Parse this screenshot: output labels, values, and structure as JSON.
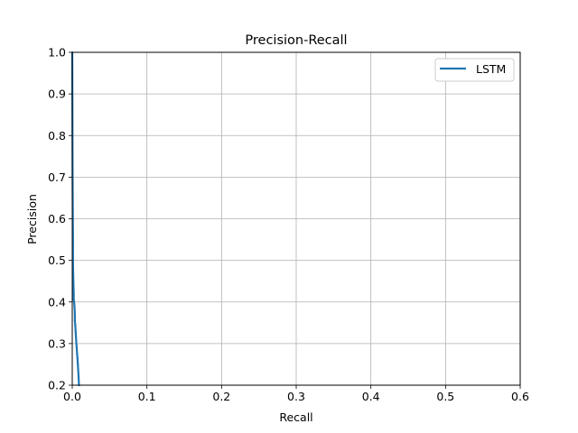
{
  "chart_data": {
    "type": "line",
    "title": "Precision-Recall",
    "xlabel": "Recall",
    "ylabel": "Precision",
    "xlim": [
      0.0,
      0.6
    ],
    "ylim": [
      0.2,
      1.0
    ],
    "xticks": [
      0.0,
      0.1,
      0.2,
      0.3,
      0.4,
      0.5,
      0.6
    ],
    "yticks": [
      0.2,
      0.3,
      0.4,
      0.5,
      0.6,
      0.7,
      0.8,
      0.9,
      1.0
    ],
    "xtick_labels": [
      "0.0",
      "0.1",
      "0.2",
      "0.3",
      "0.4",
      "0.5",
      "0.6"
    ],
    "ytick_labels": [
      "0.2",
      "0.3",
      "0.4",
      "0.5",
      "0.6",
      "0.7",
      "0.8",
      "0.9",
      "1.0"
    ],
    "grid": true,
    "legend_position": "top-right",
    "series": [
      {
        "name": "LSTM",
        "color": "#1f77b4",
        "x": [
          0.0,
          0.0005,
          0.001,
          0.001,
          0.0015,
          0.002,
          0.002,
          0.0025,
          0.003,
          0.0035,
          0.0035,
          0.004,
          0.0045,
          0.005,
          0.0055,
          0.006,
          0.0065,
          0.007,
          0.0075,
          0.008,
          0.0085,
          0.009
        ],
        "y": [
          1.0,
          0.7,
          0.54,
          0.49,
          0.45,
          0.42,
          0.405,
          0.4,
          0.39,
          0.37,
          0.355,
          0.345,
          0.33,
          0.315,
          0.3,
          0.29,
          0.275,
          0.265,
          0.25,
          0.235,
          0.22,
          0.2
        ]
      }
    ]
  }
}
